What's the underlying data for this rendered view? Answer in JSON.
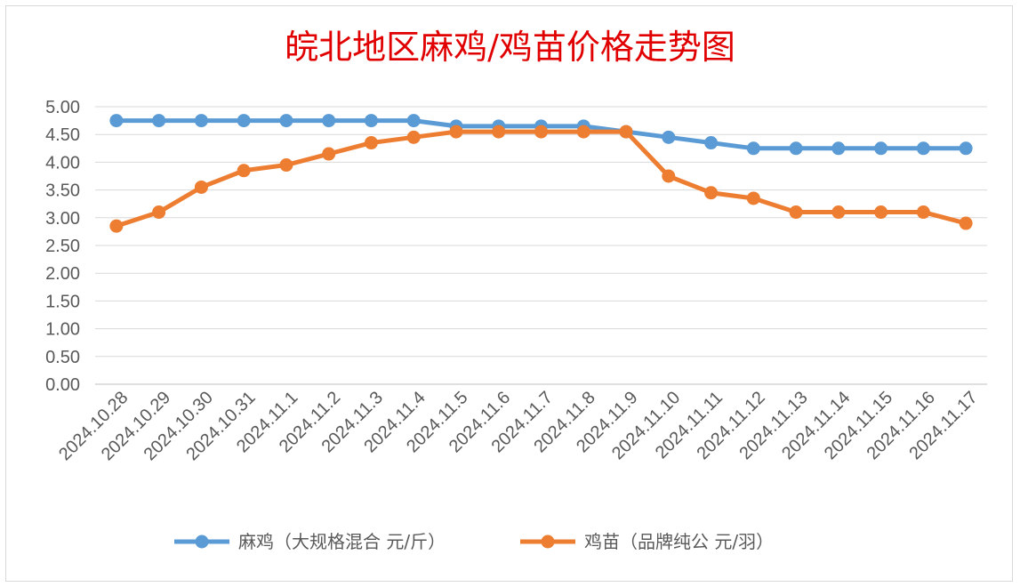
{
  "chart_data": {
    "type": "line",
    "title": "皖北地区麻鸡/鸡苗价格走势图",
    "xlabel": "",
    "ylabel": "",
    "ylim": [
      0,
      5
    ],
    "ytick_labels": [
      "0.00",
      "0.50",
      "1.00",
      "1.50",
      "2.00",
      "2.50",
      "3.00",
      "3.50",
      "4.00",
      "4.50",
      "5.00"
    ],
    "categories": [
      "2024.10.28",
      "2024.10.29",
      "2024.10.30",
      "2024.10.31",
      "2024.11.1",
      "2024.11.2",
      "2024.11.3",
      "2024.11.4",
      "2024.11.5",
      "2024.11.6",
      "2024.11.7",
      "2024.11.8",
      "2024.11.9",
      "2024.11.10",
      "2024.11.11",
      "2024.11.12",
      "2024.11.13",
      "2024.11.14",
      "2024.11.15",
      "2024.11.16",
      "2024.11.17"
    ],
    "series": [
      {
        "name": "麻鸡（大规格混合 元/斤）",
        "color": "#5b9bd5",
        "values": [
          4.75,
          4.75,
          4.75,
          4.75,
          4.75,
          4.75,
          4.75,
          4.75,
          4.65,
          4.65,
          4.65,
          4.65,
          4.55,
          4.45,
          4.35,
          4.25,
          4.25,
          4.25,
          4.25,
          4.25,
          4.25
        ]
      },
      {
        "name": "鸡苗（品牌纯公 元/羽）",
        "color": "#ed7d31",
        "values": [
          2.85,
          3.1,
          3.55,
          3.85,
          3.95,
          4.15,
          4.35,
          4.45,
          4.55,
          4.55,
          4.55,
          4.55,
          4.55,
          3.75,
          3.45,
          3.35,
          3.1,
          3.1,
          3.1,
          3.1,
          2.9
        ]
      }
    ],
    "grid": true,
    "legend_position": "bottom"
  }
}
